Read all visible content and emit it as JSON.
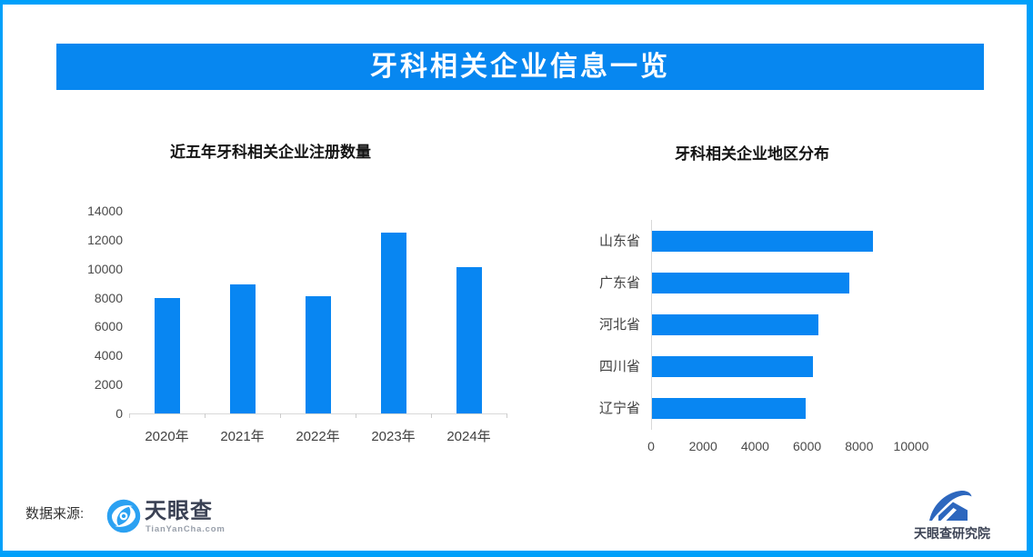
{
  "banner": {
    "title": "牙科相关企业信息一览",
    "bg_color": "#0787f0",
    "text_color": "#ffffff"
  },
  "frame": {
    "border_color": "#00a0fa",
    "background": "#ffffff"
  },
  "chart_data": [
    {
      "type": "bar",
      "orientation": "vertical",
      "title": "近五年牙科相关企业注册数量",
      "categories": [
        "2020年",
        "2021年",
        "2022年",
        "2023年",
        "2024年"
      ],
      "values": [
        8000,
        8900,
        8100,
        12500,
        10100
      ],
      "xlabel": "",
      "ylabel": "",
      "ylim": [
        0,
        14000
      ],
      "yticks": [
        0,
        2000,
        4000,
        6000,
        8000,
        10000,
        12000,
        14000
      ],
      "grid": false,
      "legend": false,
      "bar_color": "#0886f2",
      "axis_line_color": "#d9d9d9"
    },
    {
      "type": "bar",
      "orientation": "horizontal",
      "title": "牙科相关企业地区分布",
      "categories": [
        "山东省",
        "广东省",
        "河北省",
        "四川省",
        "辽宁省"
      ],
      "values": [
        8500,
        7600,
        6400,
        6200,
        5900
      ],
      "xlabel": "",
      "ylabel": "",
      "xlim": [
        0,
        10000
      ],
      "xticks": [
        0,
        2000,
        4000,
        6000,
        8000,
        10000
      ],
      "grid": false,
      "legend": false,
      "bar_color": "#0886f2",
      "axis_line_color": "#d9d9d9"
    }
  ],
  "footer": {
    "source_label": "数据来源:",
    "tianyancha": {
      "name": "天眼查",
      "domain": "TianYanCha.com",
      "icon_color": "#2ba1f2"
    },
    "research_institute": {
      "name": "天眼查研究院",
      "icon_color": "#2d67be"
    }
  }
}
